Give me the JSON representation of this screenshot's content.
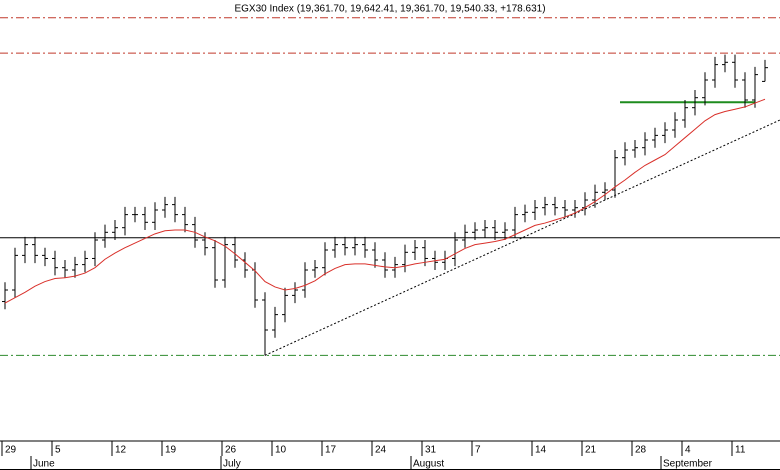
{
  "chart_data": {
    "type": "ohlc",
    "title": "EGX30 Index (19,361.70, 19,642.41, 19,361.70, 19,540.33, +178.631)",
    "xlim": [
      -0.5,
      77.5
    ],
    "ylim": [
      14700,
      20420
    ],
    "xticks": [
      {
        "value": 0,
        "label": "29"
      },
      {
        "value": 5,
        "label": "5"
      },
      {
        "value": 11,
        "label": "12"
      },
      {
        "value": 16,
        "label": "19"
      },
      {
        "value": 22,
        "label": "26"
      },
      {
        "value": 27,
        "label": "10"
      },
      {
        "value": 32,
        "label": "17"
      },
      {
        "value": 37,
        "label": "24"
      },
      {
        "value": 42,
        "label": "31"
      },
      {
        "value": 47,
        "label": "7"
      },
      {
        "value": 53,
        "label": "14"
      },
      {
        "value": 58,
        "label": "21"
      },
      {
        "value": 63,
        "label": "28"
      },
      {
        "value": 68,
        "label": "4"
      },
      {
        "value": 73,
        "label": "11"
      }
    ],
    "months": [
      {
        "value": 3,
        "label": "June"
      },
      {
        "value": 22,
        "label": "July"
      },
      {
        "value": 41,
        "label": "August"
      },
      {
        "value": 66,
        "label": "September"
      }
    ],
    "color": "#000000",
    "open": [
      16500,
      16650,
      17100,
      17240,
      17100,
      17060,
      16940,
      16910,
      16980,
      17060,
      17300,
      17400,
      17460,
      17630,
      17630,
      17530,
      17690,
      17760,
      17630,
      17500,
      17300,
      17200,
      16780,
      17240,
      17040,
      16910,
      16520,
      16130,
      16330,
      16580,
      16650,
      16910,
      16940,
      17170,
      17240,
      17200,
      17240,
      17170,
      17040,
      16910,
      16980,
      17140,
      17200,
      17060,
      17010,
      17060,
      17300,
      17400,
      17430,
      17460,
      17400,
      17430,
      17630,
      17660,
      17720,
      17760,
      17720,
      17690,
      17720,
      17820,
      17920,
      17950,
      18370,
      18470,
      18500,
      18600,
      18660,
      18730,
      18860,
      19020,
      19150,
      19380,
      19580,
      19610,
      19380,
      19120,
      19361.7
    ],
    "high": [
      16750,
      17200,
      17340,
      17340,
      17200,
      17160,
      17040,
      17080,
      17160,
      17400,
      17500,
      17560,
      17730,
      17730,
      17730,
      17790,
      17860,
      17860,
      17730,
      17600,
      17400,
      17300,
      17340,
      17340,
      17140,
      17010,
      16620,
      16430,
      16680,
      16750,
      17010,
      17040,
      17270,
      17340,
      17340,
      17340,
      17340,
      17270,
      17140,
      17080,
      17240,
      17300,
      17300,
      17160,
      17160,
      17400,
      17500,
      17530,
      17560,
      17560,
      17530,
      17730,
      17760,
      17820,
      17860,
      17860,
      17820,
      17820,
      17920,
      18020,
      18050,
      18470,
      18570,
      18600,
      18700,
      18760,
      18830,
      18960,
      19120,
      19250,
      19480,
      19680,
      19710,
      19710,
      19480,
      19550,
      19642.41
    ],
    "low": [
      16400,
      16550,
      17000,
      17000,
      16960,
      16840,
      16810,
      16810,
      16880,
      16960,
      17200,
      17300,
      17360,
      17530,
      17430,
      17430,
      17590,
      17530,
      17400,
      17200,
      17100,
      16680,
      16680,
      16940,
      16810,
      16420,
      15800,
      16030,
      16230,
      16480,
      16550,
      16810,
      16840,
      17070,
      17100,
      17100,
      17070,
      16940,
      16810,
      16810,
      16880,
      17040,
      16960,
      16910,
      16910,
      16960,
      17200,
      17300,
      17330,
      17300,
      17300,
      17330,
      17530,
      17560,
      17620,
      17620,
      17590,
      17590,
      17620,
      17720,
      17820,
      17850,
      18270,
      18370,
      18400,
      18500,
      18560,
      18630,
      18760,
      18920,
      19050,
      19280,
      19480,
      19280,
      19020,
      19020,
      19361.7
    ],
    "close": [
      16650,
      17100,
      17240,
      17100,
      17060,
      16940,
      16910,
      16980,
      17060,
      17300,
      17400,
      17460,
      17630,
      17630,
      17530,
      17690,
      17760,
      17630,
      17500,
      17300,
      17200,
      16780,
      17240,
      17040,
      16910,
      16520,
      16130,
      16330,
      16580,
      16650,
      16910,
      16940,
      17170,
      17240,
      17200,
      17240,
      17170,
      17040,
      16910,
      16980,
      17140,
      17200,
      17060,
      17010,
      17060,
      17300,
      17400,
      17430,
      17460,
      17400,
      17430,
      17630,
      17660,
      17720,
      17760,
      17720,
      17690,
      17720,
      17820,
      17920,
      17950,
      18370,
      18470,
      18500,
      18600,
      18660,
      18730,
      18860,
      19020,
      19150,
      19380,
      19580,
      19610,
      19380,
      19120,
      19450,
      19540.33
    ],
    "average": {
      "color": "#d9302a",
      "values": [
        16480,
        16550,
        16620,
        16700,
        16760,
        16800,
        16810,
        16830,
        16870,
        16940,
        17050,
        17130,
        17200,
        17260,
        17320,
        17380,
        17420,
        17430,
        17430,
        17400,
        17340,
        17290,
        17220,
        17120,
        17010,
        16900,
        16760,
        16690,
        16650,
        16670,
        16710,
        16770,
        16860,
        16930,
        16980,
        16990,
        16990,
        16970,
        16950,
        16940,
        16960,
        16990,
        17010,
        17030,
        17050,
        17120,
        17190,
        17240,
        17260,
        17280,
        17310,
        17370,
        17430,
        17490,
        17520,
        17560,
        17600,
        17650,
        17720,
        17800,
        17890,
        17990,
        18080,
        18180,
        18270,
        18340,
        18410,
        18520,
        18630,
        18740,
        18850,
        18930,
        18970,
        19000,
        19030,
        19080,
        19130
      ]
    },
    "levels": [
      {
        "value": 20190,
        "color": "#c0392b",
        "style": "dashdot"
      },
      {
        "value": 19730,
        "color": "#c0392b",
        "style": "dashdot"
      },
      {
        "value": 17330,
        "color": "#000000",
        "style": "solid"
      },
      {
        "value": 15800,
        "color": "#2e8b2e",
        "style": "dashdot"
      }
    ],
    "segments": [
      {
        "x": [
          61.5,
          75
        ],
        "y": [
          19090,
          19090
        ],
        "color": "#1e8c1e",
        "style": "solid"
      },
      {
        "x": [
          26,
          77.5
        ],
        "y": [
          15800,
          18860
        ],
        "color": "#000000",
        "style": "dotted"
      }
    ]
  }
}
